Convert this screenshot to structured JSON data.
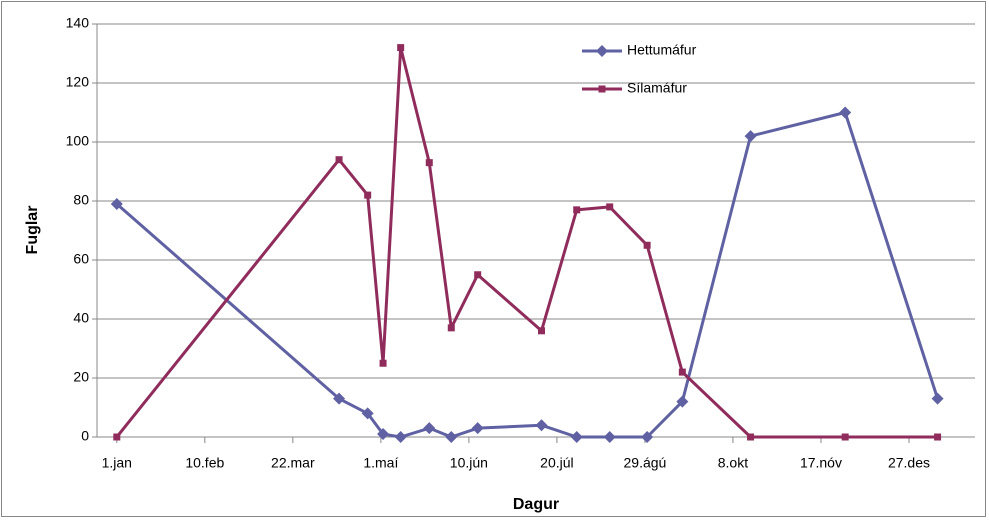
{
  "chart_data": {
    "type": "line",
    "y_label": "Fuglar",
    "x_label": "Dagur",
    "series": [
      {
        "name": "Hettumáfur",
        "color": "#5f61a3",
        "marker": "diamond",
        "x": [
          1,
          102,
          115,
          122,
          130,
          143,
          153,
          165,
          194,
          210,
          225,
          242,
          258,
          289,
          332,
          374
        ],
        "values": [
          79,
          13,
          8,
          1,
          0,
          3,
          0,
          3,
          4,
          0,
          0,
          0,
          12,
          102,
          110,
          13
        ]
      },
      {
        "name": "Sílamáfur",
        "color": "#8f2c5c",
        "marker": "square",
        "x": [
          1,
          102,
          115,
          122,
          130,
          143,
          153,
          165,
          194,
          210,
          225,
          242,
          258,
          289,
          332,
          374
        ],
        "values": [
          0,
          94,
          82,
          25,
          132,
          93,
          37,
          55,
          36,
          77,
          78,
          65,
          22,
          0,
          0,
          0
        ]
      }
    ],
    "xlim": [
      -8,
      391
    ],
    "xticks": [
      {
        "value": 1,
        "label": "1.jan"
      },
      {
        "value": 41,
        "label": "10.feb"
      },
      {
        "value": 81,
        "label": "22.mar"
      },
      {
        "value": 121,
        "label": "1.maí"
      },
      {
        "value": 161,
        "label": "10.jún"
      },
      {
        "value": 201,
        "label": "20.júl"
      },
      {
        "value": 241,
        "label": "29.ágú"
      },
      {
        "value": 281,
        "label": "8.okt"
      },
      {
        "value": 321,
        "label": "17.nóv"
      },
      {
        "value": 361,
        "label": "27.des"
      }
    ],
    "ylim": [
      0,
      140
    ],
    "yticks": [
      0,
      20,
      40,
      60,
      80,
      100,
      120,
      140
    ],
    "grid": true,
    "legend": "top-right"
  }
}
